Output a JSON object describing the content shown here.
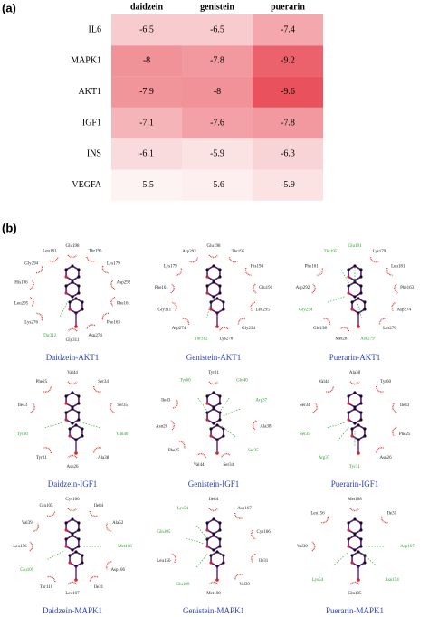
{
  "chart_data": {
    "type": "heatmap",
    "panel_label": "(a)",
    "columns": [
      "daidzein",
      "genistein",
      "puerarin"
    ],
    "rows": [
      "IL6",
      "MAPK1",
      "AKT1",
      "IGF1",
      "INS",
      "VEGFA"
    ],
    "values": [
      [
        -6.5,
        -6.5,
        -7.4
      ],
      [
        -8,
        -7.8,
        -9.2
      ],
      [
        -7.9,
        -8,
        -9.6
      ],
      [
        -7.1,
        -7.6,
        -7.8
      ],
      [
        -6.1,
        -5.9,
        -6.3
      ],
      [
        -5.5,
        -5.6,
        -5.9
      ]
    ],
    "colors": [
      "#fdf3f3",
      "#e9525d"
    ]
  },
  "docking": {
    "panel_label": "(b)",
    "diagrams": [
      {
        "title": "Daidzein-AKT1",
        "residues": [
          {
            "name": "Glu198",
            "hbond": false
          },
          {
            "name": "Thr195",
            "hbond": false
          },
          {
            "name": "Lys179",
            "hbond": false
          },
          {
            "name": "Asp292",
            "hbond": false
          },
          {
            "name": "Phe161",
            "hbond": false
          },
          {
            "name": "Phe163",
            "hbond": false
          },
          {
            "name": "Asp274",
            "hbond": false
          },
          {
            "name": "Gly311",
            "hbond": false
          },
          {
            "name": "Thr312",
            "hbond": true
          },
          {
            "name": "Lys276",
            "hbond": false
          },
          {
            "name": "Leu295",
            "hbond": false
          },
          {
            "name": "His196",
            "hbond": false
          },
          {
            "name": "Gly294",
            "hbond": false
          },
          {
            "name": "Leu181",
            "hbond": false
          }
        ]
      },
      {
        "title": "Genistein-AKT1",
        "residues": [
          {
            "name": "Glu198",
            "hbond": false
          },
          {
            "name": "Thr195",
            "hbond": false
          },
          {
            "name": "His194",
            "hbond": false
          },
          {
            "name": "Glu191",
            "hbond": false
          },
          {
            "name": "Leu295",
            "hbond": false
          },
          {
            "name": "Gly294",
            "hbond": false
          },
          {
            "name": "Lys276",
            "hbond": false
          },
          {
            "name": "Thr312",
            "hbond": true
          },
          {
            "name": "Asp274",
            "hbond": false
          },
          {
            "name": "Gly311",
            "hbond": false
          },
          {
            "name": "Phe161",
            "hbond": false
          },
          {
            "name": "Lys179",
            "hbond": false
          },
          {
            "name": "Asp292",
            "hbond": false
          }
        ]
      },
      {
        "title": "Puerarin-AKT1",
        "residues": [
          {
            "name": "Glu191",
            "hbond": true
          },
          {
            "name": "Lys179",
            "hbond": false
          },
          {
            "name": "Leu181",
            "hbond": false
          },
          {
            "name": "Phe163",
            "hbond": false
          },
          {
            "name": "Asp274",
            "hbond": false
          },
          {
            "name": "Lys276",
            "hbond": false
          },
          {
            "name": "Asn279",
            "hbond": true
          },
          {
            "name": "Met281",
            "hbond": false
          },
          {
            "name": "Glu198",
            "hbond": false
          },
          {
            "name": "Gly294",
            "hbond": true
          },
          {
            "name": "Asp292",
            "hbond": false
          },
          {
            "name": "Phe161",
            "hbond": false
          },
          {
            "name": "Thr195",
            "hbond": true
          }
        ]
      },
      {
        "title": "Daidzein-IGF1",
        "residues": [
          {
            "name": "Val44",
            "hbond": false
          },
          {
            "name": "Ser34",
            "hbond": false
          },
          {
            "name": "Ser35",
            "hbond": false
          },
          {
            "name": "Gln40",
            "hbond": true
          },
          {
            "name": "Ala38",
            "hbond": false
          },
          {
            "name": "Asn26",
            "hbond": false
          },
          {
            "name": "Tyr31",
            "hbond": false
          },
          {
            "name": "Tyr60",
            "hbond": true
          },
          {
            "name": "Ile43",
            "hbond": false
          },
          {
            "name": "Phe25",
            "hbond": false
          }
        ]
      },
      {
        "title": "Genistein-IGF1",
        "residues": [
          {
            "name": "Tyr31",
            "hbond": false
          },
          {
            "name": "Gln40",
            "hbond": true
          },
          {
            "name": "Arg37",
            "hbond": true
          },
          {
            "name": "Ala38",
            "hbond": false
          },
          {
            "name": "Ser35",
            "hbond": true
          },
          {
            "name": "Ser34",
            "hbond": false
          },
          {
            "name": "Val44",
            "hbond": false
          },
          {
            "name": "Phe25",
            "hbond": false
          },
          {
            "name": "Asn26",
            "hbond": false
          },
          {
            "name": "Ile43",
            "hbond": false
          },
          {
            "name": "Tyr60",
            "hbond": true
          }
        ]
      },
      {
        "title": "Puerarin-IGF1",
        "residues": [
          {
            "name": "Ala38",
            "hbond": false
          },
          {
            "name": "Tyr60",
            "hbond": false
          },
          {
            "name": "Ile43",
            "hbond": false
          },
          {
            "name": "Phe25",
            "hbond": false
          },
          {
            "name": "Asn26",
            "hbond": false
          },
          {
            "name": "Tyr31",
            "hbond": true
          },
          {
            "name": "Arg37",
            "hbond": true
          },
          {
            "name": "Ser35",
            "hbond": true
          },
          {
            "name": "Ser34",
            "hbond": false
          },
          {
            "name": "Val44",
            "hbond": false
          }
        ]
      },
      {
        "title": "Daidzein-MAPK1",
        "residues": [
          {
            "name": "Cys166",
            "hbond": false
          },
          {
            "name": "Ile84",
            "hbond": false
          },
          {
            "name": "Ala52",
            "hbond": false
          },
          {
            "name": "Met108",
            "hbond": true
          },
          {
            "name": "Asp106",
            "hbond": false
          },
          {
            "name": "Ile31",
            "hbond": false
          },
          {
            "name": "Leu107",
            "hbond": false
          },
          {
            "name": "Thr110",
            "hbond": false
          },
          {
            "name": "Glu109",
            "hbond": true
          },
          {
            "name": "Leu156",
            "hbond": false
          },
          {
            "name": "Val39",
            "hbond": false
          },
          {
            "name": "Gln105",
            "hbond": false
          }
        ]
      },
      {
        "title": "Genistein-MAPK1",
        "residues": [
          {
            "name": "Ile84",
            "hbond": false
          },
          {
            "name": "Asp167",
            "hbond": false
          },
          {
            "name": "Cys166",
            "hbond": false
          },
          {
            "name": "Ile31",
            "hbond": false
          },
          {
            "name": "Val39",
            "hbond": false
          },
          {
            "name": "Met108",
            "hbond": false
          },
          {
            "name": "Glu109",
            "hbond": true
          },
          {
            "name": "Leu156",
            "hbond": false
          },
          {
            "name": "Gln105",
            "hbond": true
          },
          {
            "name": "Lys54",
            "hbond": true
          }
        ]
      },
      {
        "title": "Puerarin-MAPK1",
        "residues": [
          {
            "name": "Met108",
            "hbond": false
          },
          {
            "name": "Ile31",
            "hbond": false
          },
          {
            "name": "Asp167",
            "hbond": true
          },
          {
            "name": "Asn154",
            "hbond": true
          },
          {
            "name": "Gln105",
            "hbond": false
          },
          {
            "name": "Lys54",
            "hbond": true
          },
          {
            "name": "Val39",
            "hbond": false
          },
          {
            "name": "Leu156",
            "hbond": false
          }
        ]
      }
    ]
  }
}
